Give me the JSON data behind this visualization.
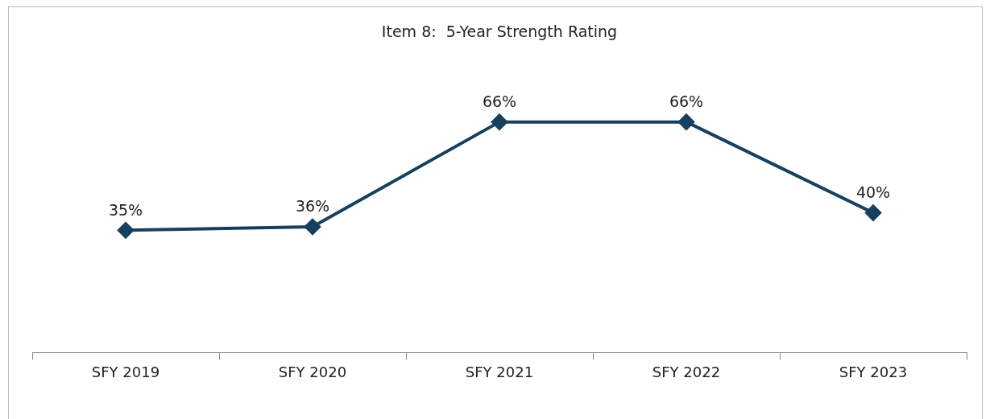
{
  "chart_data": {
    "type": "line",
    "title": "Item 8:  5-Year Strength Rating",
    "categories": [
      "SFY 2019",
      "SFY 2020",
      "SFY 2021",
      "SFY 2022",
      "SFY 2023"
    ],
    "series": [
      {
        "color": "#17405e",
        "values": [
          35,
          36,
          66,
          66,
          40
        ],
        "value_labels": [
          "35%",
          "36%",
          "66%",
          "66%",
          "40%"
        ]
      }
    ],
    "tick_labels": "x",
    "marker": "diamond",
    "legend": false,
    "grid": false
  }
}
